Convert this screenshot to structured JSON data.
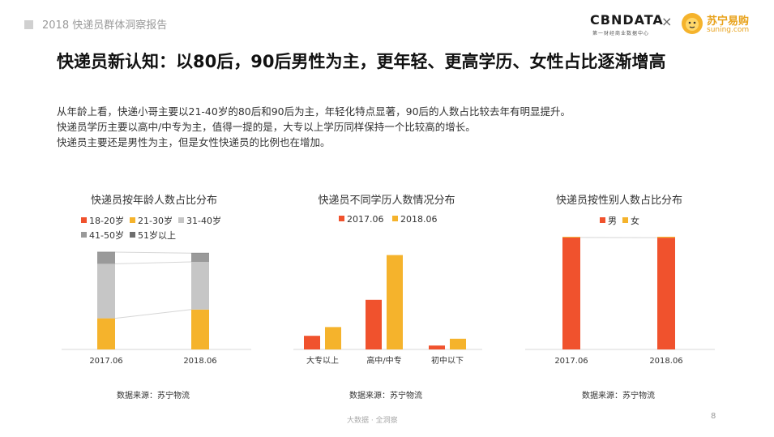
{
  "header": {
    "report_title": "2018 快递员群体洞察报告",
    "logo_cbn": "CBNDATA",
    "logo_cbn_sub": "第一财经商业数据中心",
    "logo_x": "×",
    "logo_suning": "苏宁易购",
    "logo_suning_url": "suning.com"
  },
  "title": "快递员新认知：以80后，90后男性为主，更年轻、更高学历、女性占比逐渐增高",
  "description": [
    "从年龄上看，快递小哥主要以21-40岁的80后和90后为主，年轻化特点显著，90后的人数占比较去年有明显提升。",
    "快递员学历主要以高中/中专为主，值得一提的是，大专以上学历同样保持一个比较高的增长。",
    "快递员主要还是男性为主，但是女性快递员的比例也在增加。"
  ],
  "colors": {
    "orange_red": "#f0522d",
    "gold": "#f5b32c",
    "light_gray": "#c6c6c6",
    "mid_gray": "#9a9a9a",
    "dark_gray": "#7a7a7a"
  },
  "chart_data": [
    {
      "type": "bar",
      "stacked": true,
      "percent_stacked": true,
      "title": "快递员按年龄人数占比分布",
      "categories": [
        "2017.06",
        "2018.06"
      ],
      "series": [
        {
          "name": "18-20岁",
          "color": "#f0522d",
          "values": [
            0.0,
            0.0
          ]
        },
        {
          "name": "21-30岁",
          "color": "#f5b32c",
          "values": [
            32,
            41
          ]
        },
        {
          "name": "31-40岁",
          "color": "#c6c6c6",
          "values": [
            56,
            49
          ]
        },
        {
          "name": "41-50岁",
          "color": "#9a9a9a",
          "values": [
            12,
            9
          ]
        },
        {
          "name": "51岁以上",
          "color": "#6e6e6e",
          "values": [
            0.3,
            0.3
          ]
        }
      ],
      "ylim": [
        0,
        100
      ],
      "source": "数据来源：苏宁物流"
    },
    {
      "type": "bar",
      "title": "快递员不同学历人数情况分布",
      "categories": [
        "大专以上",
        "高中/中专",
        "初中以下"
      ],
      "series": [
        {
          "name": "2017.06",
          "color": "#f0522d",
          "values": [
            14,
            51,
            4
          ]
        },
        {
          "name": "2018.06",
          "color": "#f5b32c",
          "values": [
            23,
            97,
            11
          ]
        }
      ],
      "ylim": [
        0,
        100
      ],
      "source": "数据来源：苏宁物流"
    },
    {
      "type": "bar",
      "stacked": true,
      "percent_stacked": true,
      "title": "快递员按性别人数占比分布",
      "categories": [
        "2017.06",
        "2018.06"
      ],
      "series": [
        {
          "name": "男",
          "color": "#f0522d",
          "values": [
            99.4,
            99.2
          ]
        },
        {
          "name": "女",
          "color": "#f5b32c",
          "values": [
            0.6,
            0.8
          ]
        }
      ],
      "ylim": [
        0,
        100
      ],
      "source": "数据来源：苏宁物流"
    }
  ],
  "footer": {
    "text": "大数据 · 全洞察",
    "page": "8"
  }
}
